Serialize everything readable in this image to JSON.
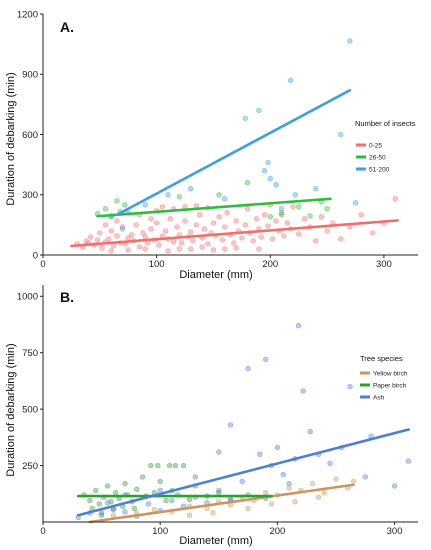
{
  "chart_data": [
    {
      "type": "scatter",
      "panel_label": "A.",
      "xlabel": "Diameter (mm)",
      "ylabel": "Duration of debarking (min)",
      "xlim": [
        0,
        330
      ],
      "ylim": [
        0,
        1200
      ],
      "xticks": [
        0,
        100,
        200,
        300
      ],
      "yticks": [
        0,
        300,
        600,
        900,
        1200
      ],
      "grid": false,
      "legend": {
        "title": "Number of insects",
        "placement": "right-middle",
        "entries": [
          "0-25",
          "26-50",
          "51-200"
        ]
      },
      "series": [
        {
          "name": "0-25",
          "color": "#f46d6d",
          "points": [
            [
              30,
              55
            ],
            [
              35,
              40
            ],
            [
              38,
              70
            ],
            [
              40,
              60
            ],
            [
              42,
              90
            ],
            [
              45,
              50
            ],
            [
              48,
              75
            ],
            [
              50,
              110
            ],
            [
              52,
              35
            ],
            [
              55,
              65
            ],
            [
              58,
              80
            ],
            [
              60,
              120
            ],
            [
              62,
              45
            ],
            [
              65,
              95
            ],
            [
              68,
              60
            ],
            [
              70,
              140
            ],
            [
              72,
              55
            ],
            [
              75,
              85
            ],
            [
              78,
              100
            ],
            [
              80,
              70
            ],
            [
              82,
              150
            ],
            [
              85,
              40
            ],
            [
              88,
              110
            ],
            [
              90,
              90
            ],
            [
              92,
              60
            ],
            [
              95,
              130
            ],
            [
              98,
              75
            ],
            [
              100,
              160
            ],
            [
              102,
              50
            ],
            [
              105,
              95
            ],
            [
              108,
              120
            ],
            [
              110,
              80
            ],
            [
              112,
              180
            ],
            [
              115,
              65
            ],
            [
              118,
              140
            ],
            [
              120,
              100
            ],
            [
              122,
              60
            ],
            [
              125,
              170
            ],
            [
              128,
              90
            ],
            [
              130,
              115
            ],
            [
              132,
              70
            ],
            [
              135,
              150
            ],
            [
              138,
              200
            ],
            [
              140,
              85
            ],
            [
              142,
              130
            ],
            [
              145,
              55
            ],
            [
              148,
              110
            ],
            [
              150,
              160
            ],
            [
              152,
              95
            ],
            [
              155,
              190
            ],
            [
              158,
              75
            ],
            [
              160,
              140
            ],
            [
              162,
              210
            ],
            [
              165,
              100
            ],
            [
              168,
              60
            ],
            [
              170,
              170
            ],
            [
              172,
              120
            ],
            [
              175,
              85
            ],
            [
              178,
              150
            ],
            [
              180,
              230
            ],
            [
              182,
              110
            ],
            [
              185,
              70
            ],
            [
              188,
              180
            ],
            [
              190,
              130
            ],
            [
              192,
              90
            ],
            [
              195,
              200
            ],
            [
              198,
              145
            ],
            [
              200,
              250
            ],
            [
              202,
              80
            ],
            [
              205,
              170
            ],
            [
              208,
              120
            ],
            [
              210,
              210
            ],
            [
              212,
              95
            ],
            [
              215,
              160
            ],
            [
              218,
              130
            ],
            [
              220,
              240
            ],
            [
              225,
              105
            ],
            [
              230,
              180
            ],
            [
              235,
              140
            ],
            [
              240,
              70
            ],
            [
              245,
              190
            ],
            [
              250,
              120
            ],
            [
              255,
              160
            ],
            [
              262,
              80
            ],
            [
              270,
              140
            ],
            [
              280,
              200
            ],
            [
              290,
              110
            ],
            [
              300,
              160
            ],
            [
              310,
              280
            ],
            [
              60,
              20
            ],
            [
              75,
              25
            ],
            [
              90,
              30
            ],
            [
              110,
              20
            ],
            [
              130,
              30
            ],
            [
              150,
              25
            ],
            [
              170,
              35
            ],
            [
              190,
              30
            ],
            [
              55,
              150
            ],
            [
              65,
              170
            ],
            [
              85,
              200
            ],
            [
              100,
              220
            ],
            [
              115,
              230
            ],
            [
              125,
              240
            ],
            [
              135,
              245
            ],
            [
              145,
              235
            ],
            [
              105,
              240
            ],
            [
              95,
              180
            ],
            [
              120,
              30
            ],
            [
              140,
              40
            ],
            [
              160,
              30
            ]
          ],
          "trend": [
            [
              25,
              45
            ],
            [
              312,
              172
            ]
          ]
        },
        {
          "name": "26-50",
          "color": "#2dbd3d",
          "points": [
            [
              48,
              205
            ],
            [
              55,
              230
            ],
            [
              60,
              195
            ],
            [
              65,
              270
            ],
            [
              68,
              215
            ],
            [
              72,
              250
            ],
            [
              120,
              290
            ],
            [
              155,
              300
            ],
            [
              180,
              360
            ],
            [
              200,
              190
            ],
            [
              210,
              200
            ],
            [
              225,
              240
            ],
            [
              235,
              195
            ],
            [
              245,
              265
            ],
            [
              250,
              230
            ]
          ],
          "trend": [
            [
              48,
              193
            ],
            [
              253,
              280
            ]
          ]
        },
        {
          "name": "51-200",
          "color": "#3b9fe0",
          "points": [
            [
              60,
              190
            ],
            [
              70,
              130
            ],
            [
              75,
              210
            ],
            [
              90,
              250
            ],
            [
              110,
              300
            ],
            [
              130,
              330
            ],
            [
              160,
              280
            ],
            [
              178,
              680
            ],
            [
              190,
              720
            ],
            [
              195,
              420
            ],
            [
              198,
              460
            ],
            [
              200,
              380
            ],
            [
              205,
              350
            ],
            [
              210,
              230
            ],
            [
              218,
              870
            ],
            [
              222,
              300
            ],
            [
              240,
              330
            ],
            [
              262,
              600
            ],
            [
              270,
              1065
            ],
            [
              275,
              260
            ]
          ],
          "trend": [
            [
              65,
              200
            ],
            [
              270,
              820
            ]
          ]
        }
      ]
    },
    {
      "type": "scatter",
      "panel_label": "B.",
      "xlabel": "Diameter (mm)",
      "ylabel": "Duration of debarking (min)",
      "xlim": [
        0,
        320
      ],
      "ylim": [
        0,
        1050
      ],
      "xticks": [
        0,
        100,
        200,
        300
      ],
      "yticks": [
        250,
        500,
        750,
        1000
      ],
      "grid": false,
      "legend": {
        "title": "Tree species",
        "placement": "right-middle",
        "entries": [
          "Yellow birch",
          "Paper birch",
          "Ash"
        ]
      },
      "series": [
        {
          "name": "Yellow birch",
          "color": "#c9965e",
          "points": [
            [
              60,
              30
            ],
            [
              80,
              40
            ],
            [
              95,
              55
            ],
            [
              110,
              45
            ],
            [
              125,
              70
            ],
            [
              140,
              60
            ],
            [
              150,
              90
            ],
            [
              160,
              75
            ],
            [
              170,
              110
            ],
            [
              180,
              95
            ],
            [
              190,
              130
            ],
            [
              200,
              120
            ],
            [
              210,
              150
            ],
            [
              220,
              140
            ],
            [
              230,
              170
            ],
            [
              240,
              130
            ],
            [
              250,
              190
            ],
            [
              260,
              150
            ],
            [
              265,
              180
            ],
            [
              175,
              60
            ],
            [
              145,
              40
            ],
            [
              125,
              30
            ],
            [
              215,
              90
            ],
            [
              235,
              110
            ],
            [
              195,
              80
            ]
          ],
          "trend": [
            [
              40,
              0
            ],
            [
              265,
              165
            ]
          ]
        },
        {
          "name": "Paper birch",
          "color": "#2f9e35",
          "points": [
            [
              35,
              120
            ],
            [
              40,
              95
            ],
            [
              45,
              140
            ],
            [
              48,
              80
            ],
            [
              52,
              110
            ],
            [
              55,
              160
            ],
            [
              58,
              90
            ],
            [
              62,
              130
            ],
            [
              65,
              105
            ],
            [
              70,
              170
            ],
            [
              72,
              120
            ],
            [
              76,
              90
            ],
            [
              80,
              145
            ],
            [
              85,
              200
            ],
            [
              88,
              115
            ],
            [
              92,
              250
            ],
            [
              95,
              130
            ],
            [
              100,
              180
            ],
            [
              105,
              95
            ],
            [
              110,
              140
            ],
            [
              115,
              120
            ],
            [
              120,
              250
            ],
            [
              125,
              100
            ],
            [
              130,
              160
            ],
            [
              140,
              115
            ],
            [
              150,
              130
            ],
            [
              160,
              95
            ],
            [
              175,
              120
            ],
            [
              190,
              105
            ],
            [
              42,
              60
            ],
            [
              50,
              40
            ],
            [
              60,
              55
            ],
            [
              68,
              70
            ],
            [
              78,
              60
            ],
            [
              98,
              250
            ],
            [
              108,
              250
            ],
            [
              113,
              250
            ]
          ],
          "trend": [
            [
              30,
              115
            ],
            [
              195,
              115
            ]
          ]
        },
        {
          "name": "Ash",
          "color": "#4d7fd6",
          "points": [
            [
              30,
              20
            ],
            [
              40,
              40
            ],
            [
              50,
              30
            ],
            [
              60,
              60
            ],
            [
              70,
              45
            ],
            [
              80,
              25
            ],
            [
              90,
              80
            ],
            [
              100,
              50
            ],
            [
              110,
              95
            ],
            [
              120,
              70
            ],
            [
              130,
              110
            ],
            [
              140,
              85
            ],
            [
              150,
              140
            ],
            [
              160,
              100
            ],
            [
              170,
              180
            ],
            [
              175,
              680
            ],
            [
              185,
              300
            ],
            [
              190,
              720
            ],
            [
              195,
              250
            ],
            [
              200,
              330
            ],
            [
              205,
              210
            ],
            [
              210,
              170
            ],
            [
              215,
              280
            ],
            [
              218,
              870
            ],
            [
              222,
              580
            ],
            [
              228,
              400
            ],
            [
              235,
              300
            ],
            [
              245,
              260
            ],
            [
              255,
              330
            ],
            [
              262,
              600
            ],
            [
              275,
              200
            ],
            [
              300,
              160
            ],
            [
              312,
              270
            ],
            [
              280,
              380
            ],
            [
              160,
              430
            ],
            [
              150,
              310
            ],
            [
              130,
              200
            ],
            [
              100,
              140
            ],
            [
              70,
              120
            ],
            [
              55,
              85
            ]
          ],
          "trend": [
            [
              30,
              30
            ],
            [
              312,
              410
            ]
          ]
        }
      ]
    }
  ]
}
